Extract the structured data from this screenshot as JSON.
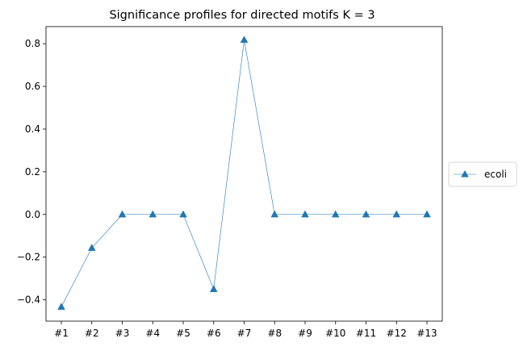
{
  "chart_data": {
    "type": "line",
    "title": "Significance profiles for directed motifs K = 3",
    "xlabel": "",
    "ylabel": "",
    "categories": [
      "#1",
      "#2",
      "#3",
      "#4",
      "#5",
      "#6",
      "#7",
      "#8",
      "#9",
      "#10",
      "#11",
      "#12",
      "#13"
    ],
    "ylim": [
      -0.5,
      0.88
    ],
    "yticks": [
      -0.4,
      -0.2,
      0.0,
      0.2,
      0.4,
      0.6,
      0.8
    ],
    "ytick_labels": [
      "−0.4",
      "−0.2",
      "0.0",
      "0.2",
      "0.4",
      "0.6",
      "0.8"
    ],
    "grid": false,
    "legend_position": "outside-right",
    "marker": "triangle",
    "series": [
      {
        "name": "ecoli",
        "color": "#1f77b4",
        "values": [
          -0.433,
          -0.157,
          0.0,
          0.0,
          0.0,
          -0.35,
          0.818,
          0.0,
          0.0,
          0.0,
          0.0,
          0.0,
          0.0
        ]
      }
    ]
  }
}
